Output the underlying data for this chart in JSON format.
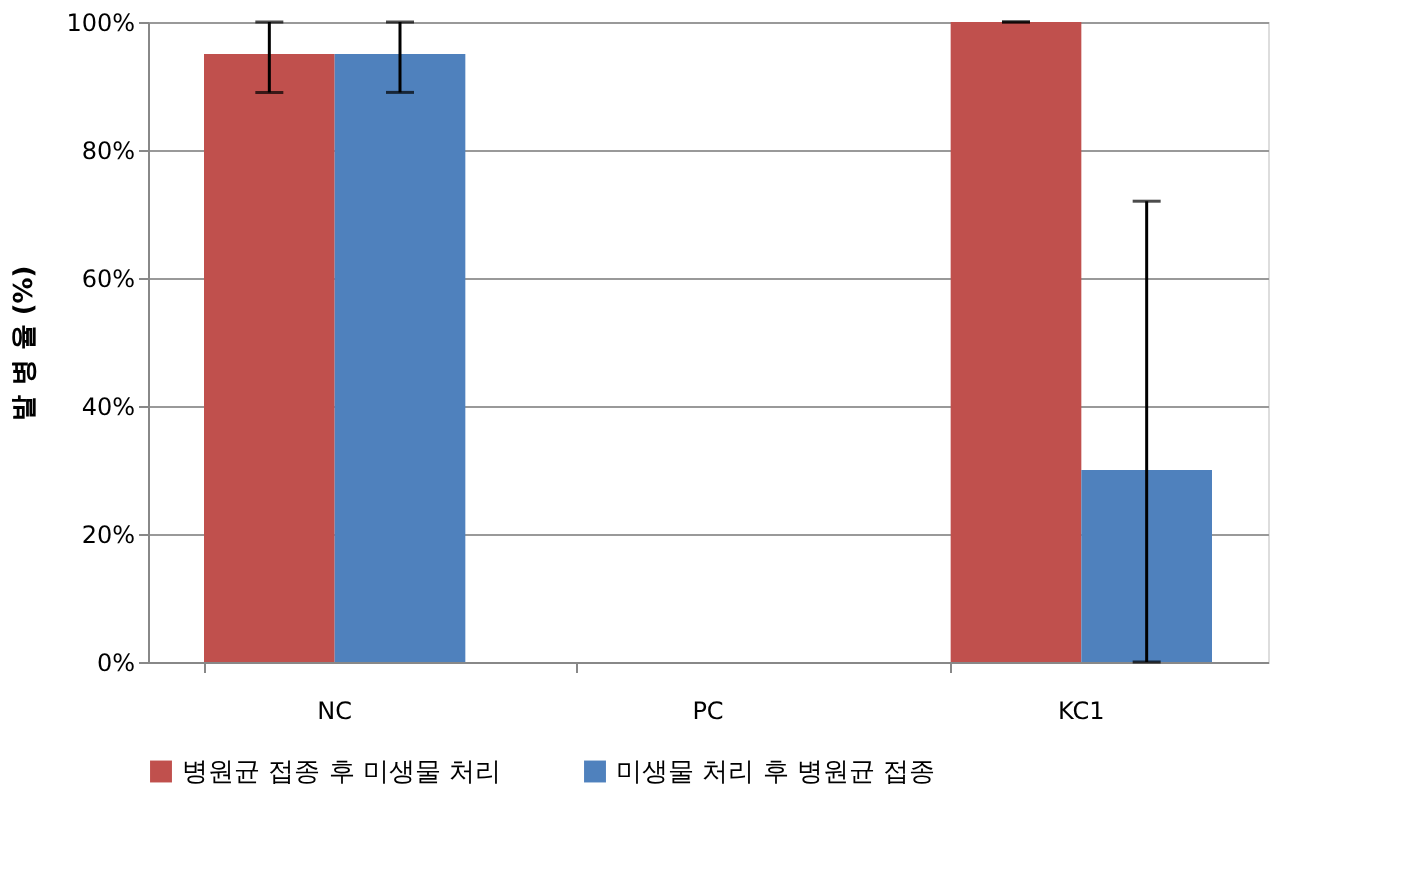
{
  "chart_data": {
    "type": "bar",
    "ylabel": "발 병 율 (%)",
    "categories": [
      "NC",
      "PC",
      "KC1"
    ],
    "series": [
      {
        "name": "병원균 접종 후 미생물 처리",
        "color": "#c0504d",
        "values": [
          95,
          0,
          100
        ],
        "errors": [
          [
            89,
            100
          ],
          null,
          [
            100,
            100
          ]
        ]
      },
      {
        "name": "미생물 처리 후 병원균 접종",
        "color": "#4f81bd",
        "values": [
          95,
          0,
          30
        ],
        "errors": [
          [
            89,
            100
          ],
          null,
          [
            0,
            72
          ]
        ]
      }
    ],
    "ylim": [
      0,
      100
    ],
    "yticks": [
      {
        "value": 0,
        "label": "0%"
      },
      {
        "value": 20,
        "label": "20%"
      },
      {
        "value": 40,
        "label": "40%"
      },
      {
        "value": 60,
        "label": "60%"
      },
      {
        "value": 80,
        "label": "80%"
      },
      {
        "value": 100,
        "label": "100%"
      }
    ],
    "grid": "y",
    "legend": "bottom"
  }
}
